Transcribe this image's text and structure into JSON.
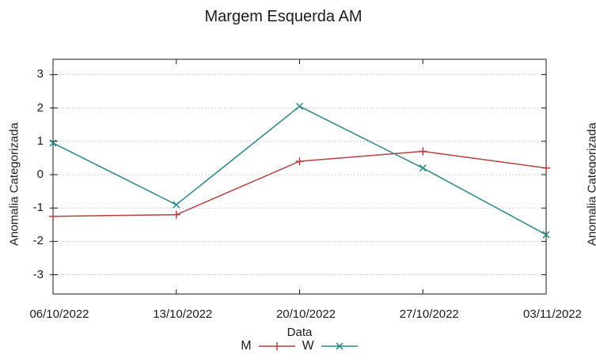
{
  "title": "Margem Esquerda AM",
  "colors": {
    "series_m": "#b44040",
    "series_w": "#2e8686",
    "grid": "#c0c0c0",
    "axis": "#1a1a1a",
    "text": "#1c1c1c",
    "background": "#ffffff"
  },
  "chart_data": {
    "type": "line",
    "title": "Margem Esquerda AM",
    "xlabel": "Data",
    "ylabel": "Anomalia Categorizada",
    "categories": [
      "06/10/2022",
      "13/10/2022",
      "20/10/2022",
      "27/10/2022",
      "03/11/2022"
    ],
    "series": [
      {
        "name": "M",
        "color": "#b44040",
        "marker": "plus",
        "values": [
          -1.25,
          -1.2,
          0.4,
          0.7,
          0.2
        ]
      },
      {
        "name": "W",
        "color": "#2e8686",
        "marker": "cross",
        "values": [
          0.95,
          -0.9,
          2.05,
          0.2,
          -1.8
        ]
      }
    ],
    "yticks": [
      3,
      2,
      1,
      0,
      -1,
      -2,
      -3
    ],
    "ylim": [
      -3.55,
      3.45
    ],
    "grid": "horizontal-dotted",
    "legend_position": "bottom-center"
  },
  "adjacent_chart_fragment": {
    "ylabel": "Anomalia Categorizada"
  }
}
